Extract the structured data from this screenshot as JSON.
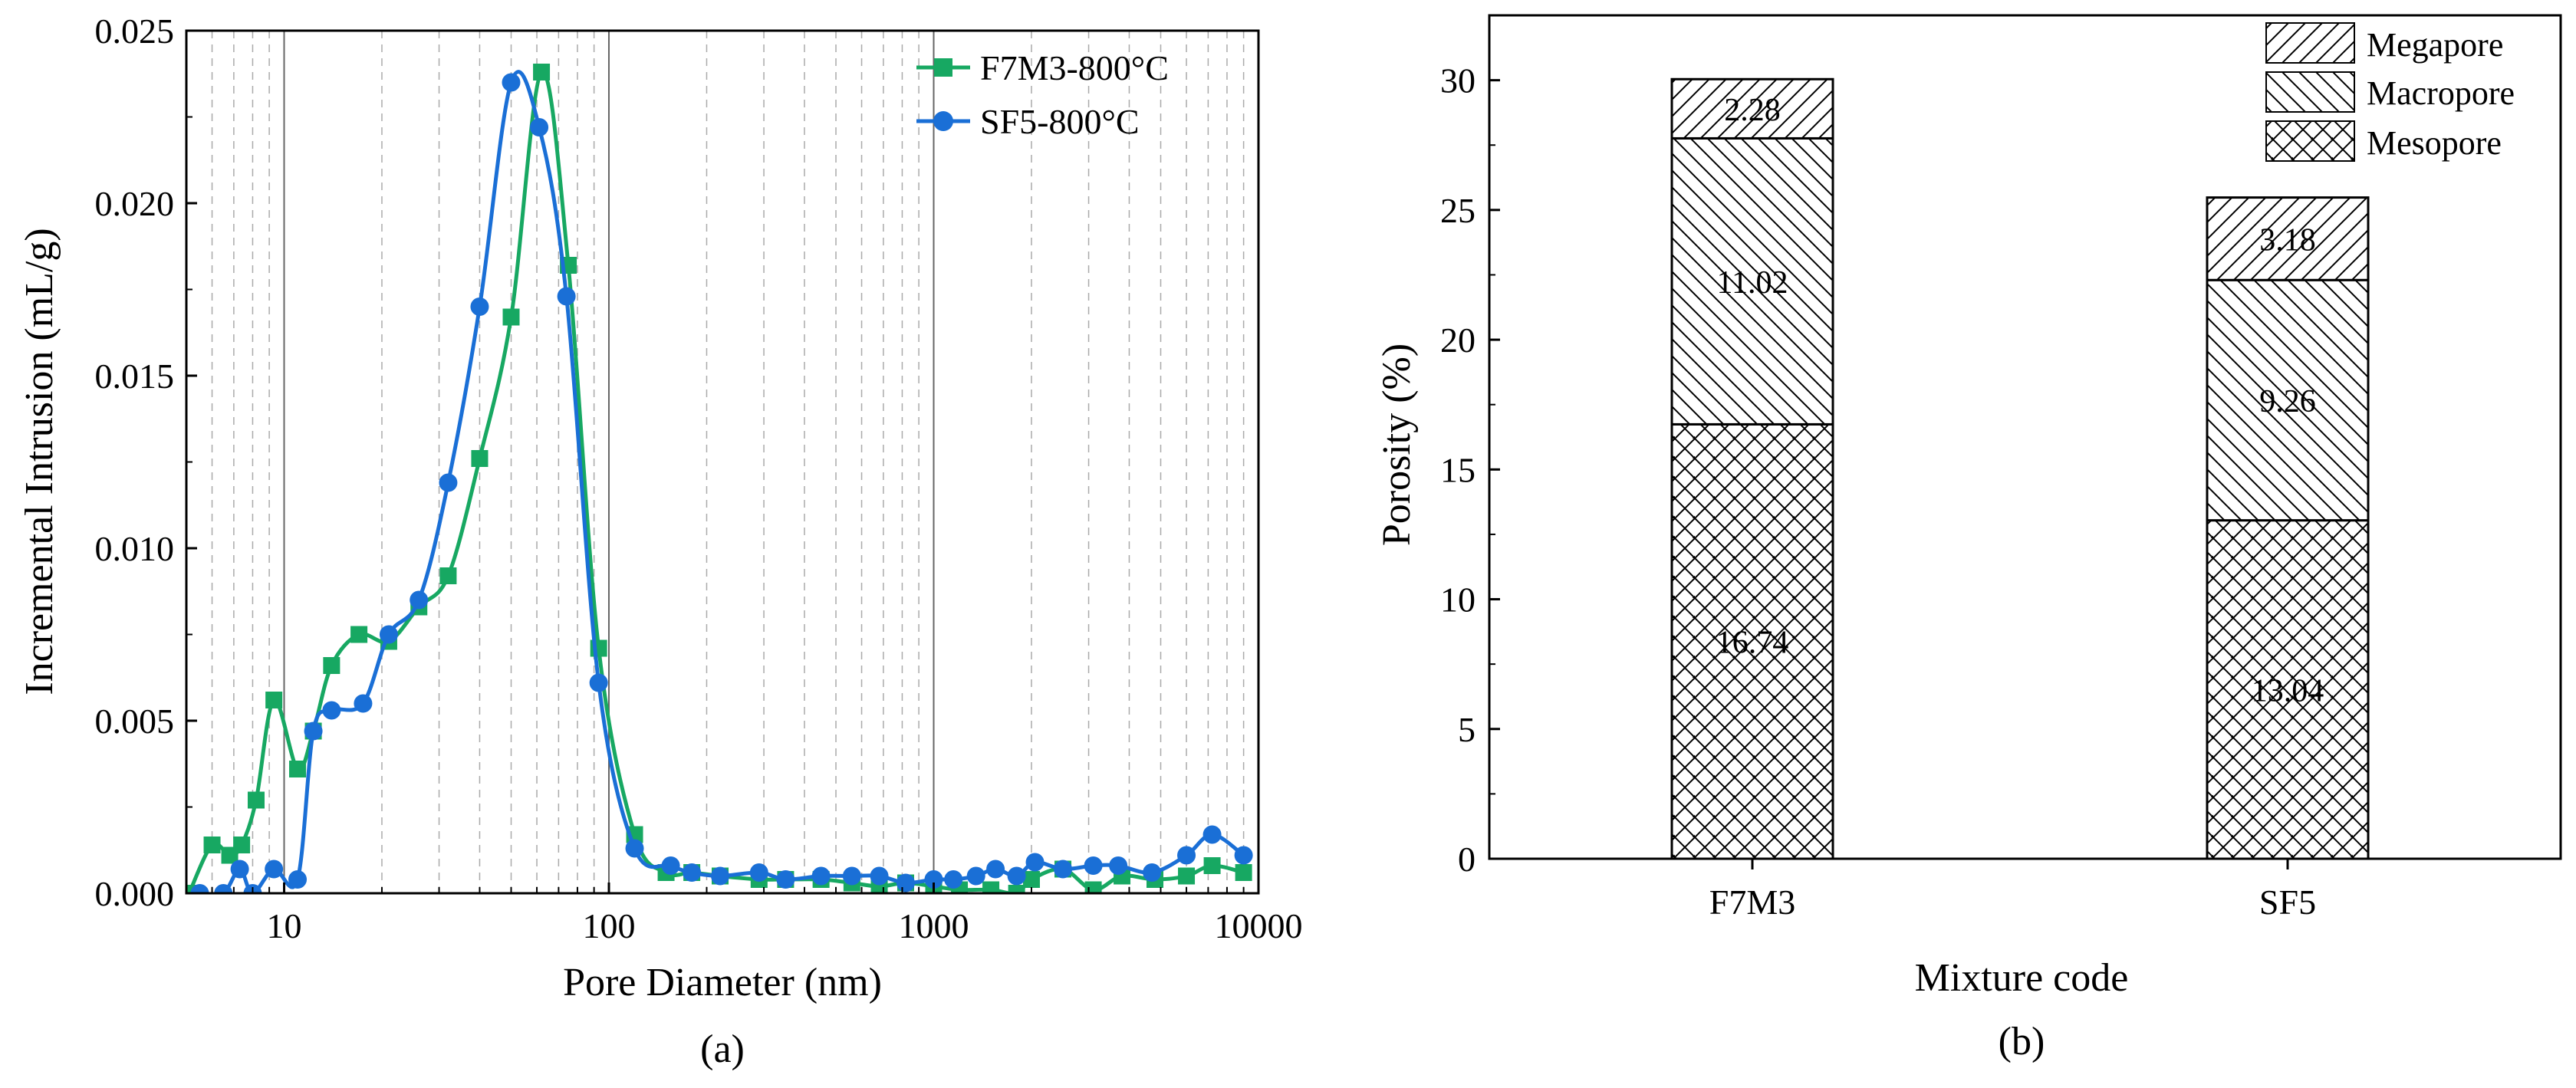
{
  "figure": {
    "panel_a_caption": "(a)",
    "panel_b_caption": "(b)"
  },
  "chart_data": [
    {
      "type": "line",
      "panel": "a",
      "xscale": "log",
      "xlabel": "Pore Diameter  (nm)",
      "ylabel": "Incremental Intrusion (mL/g)",
      "xlim": [
        5,
        10000
      ],
      "ylim": [
        0,
        0.025
      ],
      "xticks": [
        10,
        100,
        1000,
        10000
      ],
      "xtick_labels": [
        "10",
        "100",
        "1000",
        "10000"
      ],
      "yticks": [
        0,
        0.005,
        0.01,
        0.015,
        0.02,
        0.025
      ],
      "ytick_labels": [
        "0.000",
        "0.005",
        "0.010",
        "0.015",
        "0.020",
        "0.025"
      ],
      "minor_gridlines": "dashed vertical at 2–9 × each decade",
      "major_gridlines": "solid vertical at 10, 100, 1000",
      "legend_position": "top-right",
      "series": [
        {
          "name": "F7M3-800°C",
          "color": "#17a862",
          "marker": "square",
          "points": [
            [
              5.1,
              0.0
            ],
            [
              6.0,
              0.0014
            ],
            [
              6.8,
              0.0011
            ],
            [
              7.4,
              0.0014
            ],
            [
              8.2,
              0.0027
            ],
            [
              9.3,
              0.0056
            ],
            [
              11.0,
              0.0036
            ],
            [
              12.3,
              0.0047
            ],
            [
              14.0,
              0.0066
            ],
            [
              17.0,
              0.0075
            ],
            [
              21.0,
              0.0073
            ],
            [
              26.0,
              0.0083
            ],
            [
              32.0,
              0.0092
            ],
            [
              40.0,
              0.0126
            ],
            [
              50.0,
              0.0167
            ],
            [
              62.0,
              0.0238
            ],
            [
              75.0,
              0.0182
            ],
            [
              93.0,
              0.0071
            ],
            [
              120.0,
              0.0017
            ],
            [
              150.0,
              0.0006
            ],
            [
              180.0,
              0.0006
            ],
            [
              220.0,
              0.0005
            ],
            [
              290.0,
              0.0004
            ],
            [
              350.0,
              0.0004
            ],
            [
              450.0,
              0.0004
            ],
            [
              560.0,
              0.0003
            ],
            [
              680.0,
              0.0002
            ],
            [
              820.0,
              0.0003
            ],
            [
              1000.0,
              0.0002
            ],
            [
              1200.0,
              0.0001
            ],
            [
              1500.0,
              0.0001
            ],
            [
              1800.0,
              0.0
            ],
            [
              2000.0,
              0.0004
            ],
            [
              2500.0,
              0.0007
            ],
            [
              3100.0,
              0.0001
            ],
            [
              3800.0,
              0.0005
            ],
            [
              4800.0,
              0.0004
            ],
            [
              6000.0,
              0.0005
            ],
            [
              7200.0,
              0.0008
            ],
            [
              9000.0,
              0.0006
            ]
          ]
        },
        {
          "name": "SF5-800°C",
          "color": "#1a6fd6",
          "marker": "circle",
          "points": [
            [
              5.5,
              0.0
            ],
            [
              6.5,
              0.0
            ],
            [
              7.3,
              0.0007
            ],
            [
              8.0,
              0.0
            ],
            [
              9.3,
              0.0007
            ],
            [
              11.0,
              0.0004
            ],
            [
              12.3,
              0.0047
            ],
            [
              14.0,
              0.0053
            ],
            [
              17.5,
              0.0055
            ],
            [
              21.0,
              0.0075
            ],
            [
              26.0,
              0.0085
            ],
            [
              32.0,
              0.0119
            ],
            [
              40.0,
              0.017
            ],
            [
              50.0,
              0.0235
            ],
            [
              61.0,
              0.0222
            ],
            [
              74.0,
              0.0173
            ],
            [
              93.0,
              0.0061
            ],
            [
              120.0,
              0.0013
            ],
            [
              155.0,
              0.0008
            ],
            [
              180.0,
              0.0006
            ],
            [
              220.0,
              0.0005
            ],
            [
              290.0,
              0.0006
            ],
            [
              350.0,
              0.0004
            ],
            [
              450.0,
              0.0005
            ],
            [
              560.0,
              0.0005
            ],
            [
              680.0,
              0.0005
            ],
            [
              820.0,
              0.0003
            ],
            [
              1000.0,
              0.0004
            ],
            [
              1150.0,
              0.0004
            ],
            [
              1350.0,
              0.0005
            ],
            [
              1550.0,
              0.0007
            ],
            [
              1800.0,
              0.0005
            ],
            [
              2050.0,
              0.0009
            ],
            [
              2500.0,
              0.0007
            ],
            [
              3100.0,
              0.0008
            ],
            [
              3700.0,
              0.0008
            ],
            [
              4700.0,
              0.0006
            ],
            [
              6000.0,
              0.0011
            ],
            [
              7200.0,
              0.0017
            ],
            [
              9000.0,
              0.0011
            ]
          ]
        }
      ]
    },
    {
      "type": "bar",
      "panel": "b",
      "stacked": true,
      "xlabel": "Mixture code",
      "ylabel": "Porosity (%)",
      "ylim": [
        0,
        32.5
      ],
      "yticks": [
        0,
        5,
        10,
        15,
        20,
        25,
        30
      ],
      "ytick_labels": [
        "0",
        "5",
        "10",
        "15",
        "20",
        "25",
        "30"
      ],
      "categories": [
        "F7M3",
        "SF5"
      ],
      "legend_position": "top-right",
      "series": [
        {
          "name": "Mesopore",
          "hatch": "crosshatch",
          "values": [
            16.74,
            13.04
          ],
          "labels": [
            "16.74",
            "13.04"
          ]
        },
        {
          "name": "Macropore",
          "hatch": "backslash",
          "values": [
            11.02,
            9.26
          ],
          "labels": [
            "11.02",
            "9.26"
          ]
        },
        {
          "name": "Megapore",
          "hatch": "slash",
          "values": [
            2.28,
            3.18
          ],
          "labels": [
            "2.28",
            "3.18"
          ]
        }
      ],
      "legend_order": [
        "Megapore",
        "Macropore",
        "Mesopore"
      ]
    }
  ]
}
